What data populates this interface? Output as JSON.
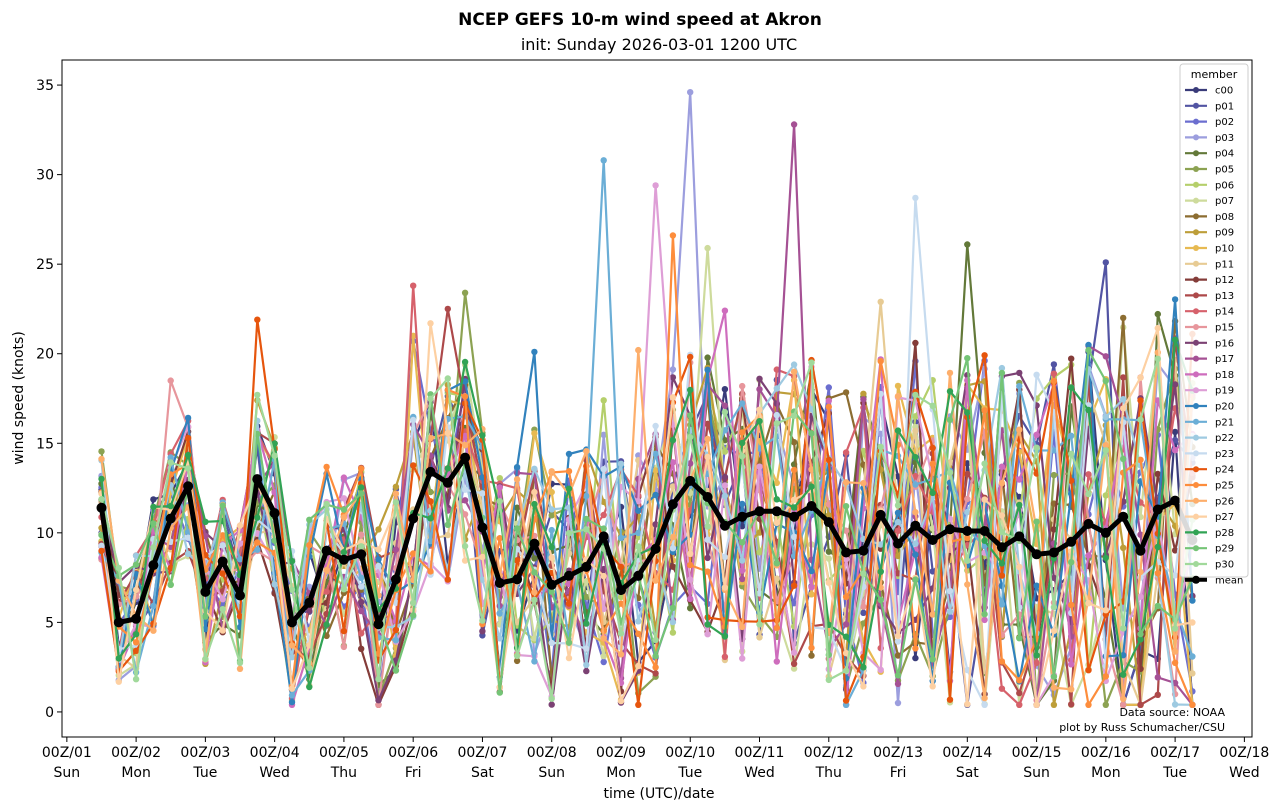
{
  "chart_data": {
    "type": "line",
    "title": "NCEP GEFS 10-m wind speed at Akron",
    "subtitle": "init: Sunday 2026-03-01 1200 UTC",
    "xlabel": "time (UTC)/date",
    "ylabel": "wind speed (knots)",
    "ylim": [
      -1.4,
      36.4
    ],
    "yticks": [
      0,
      5,
      10,
      15,
      20,
      25,
      30,
      35
    ],
    "xlim_days": [
      -0.07,
      17.11
    ],
    "xticks": [
      {
        "day": 0,
        "label": "00Z/01",
        "dow": "Sun"
      },
      {
        "day": 1,
        "label": "00Z/02",
        "dow": "Mon"
      },
      {
        "day": 2,
        "label": "00Z/03",
        "dow": "Tue"
      },
      {
        "day": 3,
        "label": "00Z/04",
        "dow": "Wed"
      },
      {
        "day": 4,
        "label": "00Z/05",
        "dow": "Thu"
      },
      {
        "day": 5,
        "label": "00Z/06",
        "dow": "Fri"
      },
      {
        "day": 6,
        "label": "00Z/07",
        "dow": "Sat"
      },
      {
        "day": 7,
        "label": "00Z/08",
        "dow": "Sun"
      },
      {
        "day": 8,
        "label": "00Z/09",
        "dow": "Mon"
      },
      {
        "day": 9,
        "label": "00Z/10",
        "dow": "Tue"
      },
      {
        "day": 10,
        "label": "00Z/11",
        "dow": "Wed"
      },
      {
        "day": 11,
        "label": "00Z/12",
        "dow": "Thu"
      },
      {
        "day": 12,
        "label": "00Z/13",
        "dow": "Fri"
      },
      {
        "day": 13,
        "label": "00Z/14",
        "dow": "Sat"
      },
      {
        "day": 14,
        "label": "00Z/15",
        "dow": "Sun"
      },
      {
        "day": 15,
        "label": "00Z/16",
        "dow": "Mon"
      },
      {
        "day": 16,
        "label": "00Z/17",
        "dow": "Tue"
      },
      {
        "day": 17,
        "label": "00Z/18",
        "dow": "Wed"
      }
    ],
    "x_start_day": 0.5,
    "x_step_days": 0.25,
    "legend_title": "member",
    "legend_position": "top-right",
    "mean": {
      "name": "mean",
      "color": "#000000",
      "values": [
        11.4,
        5.0,
        5.2,
        8.2,
        10.8,
        12.6,
        6.7,
        8.4,
        6.5,
        13.0,
        11.1,
        5.0,
        6.1,
        9.0,
        8.5,
        8.8,
        4.9,
        7.4,
        10.8,
        13.4,
        12.8,
        14.2,
        10.3,
        7.2,
        7.4,
        9.4,
        7.1,
        7.6,
        8.1,
        9.8,
        6.8,
        7.6,
        9.1,
        11.6,
        12.9,
        12.0,
        10.4,
        10.9,
        11.2,
        11.2,
        10.9,
        11.5,
        10.6,
        8.9,
        9.0,
        11.0,
        9.4,
        10.4,
        9.6,
        10.2,
        10.1,
        10.1,
        9.2,
        9.8,
        8.8,
        8.9,
        9.5,
        10.5,
        10.0,
        10.9,
        9.0,
        11.3,
        11.8,
        9.6
      ]
    },
    "series": [
      {
        "name": "c00",
        "color": "#393b79"
      },
      {
        "name": "p01",
        "color": "#5254a3"
      },
      {
        "name": "p02",
        "color": "#6b6ecf"
      },
      {
        "name": "p03",
        "color": "#9c9ede"
      },
      {
        "name": "p04",
        "color": "#637939"
      },
      {
        "name": "p05",
        "color": "#8ca252"
      },
      {
        "name": "p06",
        "color": "#b5cf6b"
      },
      {
        "name": "p07",
        "color": "#cedb9c"
      },
      {
        "name": "p08",
        "color": "#8c6d31"
      },
      {
        "name": "p09",
        "color": "#bd9e39"
      },
      {
        "name": "p10",
        "color": "#e7ba52"
      },
      {
        "name": "p11",
        "color": "#e7cb94"
      },
      {
        "name": "p12",
        "color": "#843c39"
      },
      {
        "name": "p13",
        "color": "#ad494a"
      },
      {
        "name": "p14",
        "color": "#d6616b"
      },
      {
        "name": "p15",
        "color": "#e7969c"
      },
      {
        "name": "p16",
        "color": "#7b4173"
      },
      {
        "name": "p17",
        "color": "#a55194"
      },
      {
        "name": "p18",
        "color": "#ce6dbd"
      },
      {
        "name": "p19",
        "color": "#de9ed6"
      },
      {
        "name": "p20",
        "color": "#3182bd"
      },
      {
        "name": "p21",
        "color": "#6baed6"
      },
      {
        "name": "p22",
        "color": "#9ecae1"
      },
      {
        "name": "p23",
        "color": "#c6dbef"
      },
      {
        "name": "p24",
        "color": "#e6550d"
      },
      {
        "name": "p25",
        "color": "#fd8d3c"
      },
      {
        "name": "p26",
        "color": "#fdae6b"
      },
      {
        "name": "p27",
        "color": "#fdd0a2"
      },
      {
        "name": "p28",
        "color": "#31a354"
      },
      {
        "name": "p29",
        "color": "#74c476"
      },
      {
        "name": "p30",
        "color": "#a1d99b"
      }
    ],
    "member_peaks": [
      {
        "name": "c00",
        "idx": 53,
        "value": 12.0
      },
      {
        "name": "p01",
        "idx": 58,
        "value": 25.1
      },
      {
        "name": "p02",
        "idx": 18,
        "value": 20.7
      },
      {
        "name": "p03",
        "idx": 34,
        "value": 34.6
      },
      {
        "name": "p04",
        "idx": 50,
        "value": 26.1
      },
      {
        "name": "p05",
        "idx": 21,
        "value": 23.4
      },
      {
        "name": "p06",
        "idx": 29,
        "value": 17.4
      },
      {
        "name": "p07",
        "idx": 35,
        "value": 25.9
      },
      {
        "name": "p08",
        "idx": 59,
        "value": 22.0
      },
      {
        "name": "p09",
        "idx": 58,
        "value": 16.0
      },
      {
        "name": "p10",
        "idx": 18,
        "value": 21.0
      },
      {
        "name": "p11",
        "idx": 45,
        "value": 22.9
      },
      {
        "name": "p12",
        "idx": 47,
        "value": 20.6
      },
      {
        "name": "p13",
        "idx": 20,
        "value": 22.5
      },
      {
        "name": "p14",
        "idx": 18,
        "value": 23.8
      },
      {
        "name": "p15",
        "idx": 4,
        "value": 18.5
      },
      {
        "name": "p16",
        "idx": 38,
        "value": 18.6
      },
      {
        "name": "p17",
        "idx": 40,
        "value": 32.8
      },
      {
        "name": "p18",
        "idx": 36,
        "value": 22.4
      },
      {
        "name": "p19",
        "idx": 32,
        "value": 29.4
      },
      {
        "name": "p20",
        "idx": 25,
        "value": 20.1
      },
      {
        "name": "p21",
        "idx": 29,
        "value": 30.8
      },
      {
        "name": "p22",
        "idx": 52,
        "value": 19.2
      },
      {
        "name": "p23",
        "idx": 47,
        "value": 28.7
      },
      {
        "name": "p24",
        "idx": 9,
        "value": 21.9
      },
      {
        "name": "p25",
        "idx": 33,
        "value": 26.6
      },
      {
        "name": "p26",
        "idx": 31,
        "value": 20.2
      },
      {
        "name": "p27",
        "idx": 19,
        "value": 21.7
      },
      {
        "name": "p28",
        "idx": 49,
        "value": 17.9
      },
      {
        "name": "p29",
        "idx": 57,
        "value": 20.2
      },
      {
        "name": "p30",
        "idx": 9,
        "value": 17.7
      }
    ],
    "annotation": [
      "Data source: NOAA",
      "plot by Russ Schumacher/CSU"
    ]
  }
}
